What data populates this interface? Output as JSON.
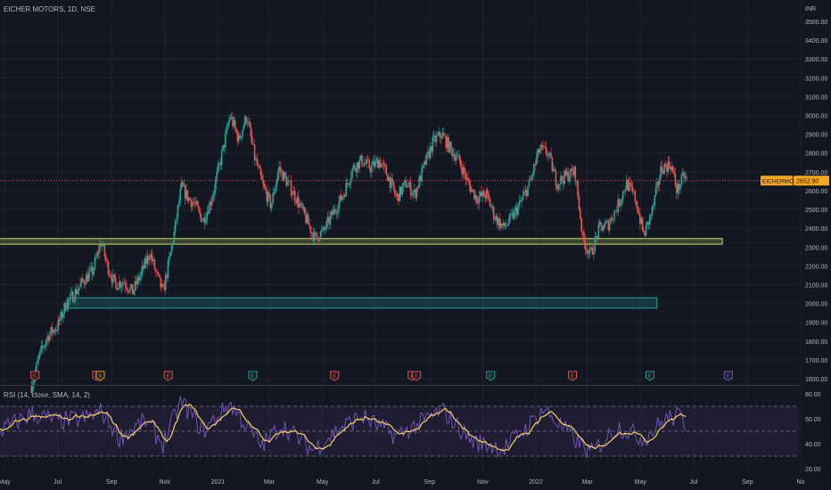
{
  "header": {
    "symbol_title": "EICHER MOTORS, 1D, NSE",
    "currency": "INR"
  },
  "price_badge": {
    "label": "EICHERMOT",
    "value": "2652.90"
  },
  "rsi_panel": {
    "title": "RSI (14, close, SMA, 14, 2)",
    "ticks": [
      "80.00",
      "60.00",
      "40.00",
      "20.00"
    ]
  },
  "colors": {
    "background": "#131722",
    "up": "#26a69a",
    "down": "#ef5350",
    "support_zone": "#c8e06a",
    "demand_zone": "#26a69a",
    "rsi_line": "#7e57c2",
    "rsi_ma": "#f5d061",
    "badge": "#f5a623"
  },
  "chart_data": {
    "type": "candlestick",
    "title": "EICHER MOTORS, 1D, NSE",
    "xlabel": "",
    "ylabel": "INR",
    "ylim": [
      1500,
      3500
    ],
    "y_ticks": [
      "3500.00",
      "3400.00",
      "3300.00",
      "3200.00",
      "3100.00",
      "3000.00",
      "2900.00",
      "2800.00",
      "2700.00",
      "2600.00",
      "2500.00",
      "2400.00",
      "2300.00",
      "2200.00",
      "2100.00",
      "2000.00",
      "1900.00",
      "1800.00",
      "1700.00",
      "1600.00"
    ],
    "x_ticks": [
      {
        "label": "May",
        "date": "2020-05-01"
      },
      {
        "label": "Jul",
        "date": "2020-07-01"
      },
      {
        "label": "Sep",
        "date": "2020-09-01"
      },
      {
        "label": "Nov",
        "date": "2020-11-01"
      },
      {
        "label": "2021",
        "date": "2021-01-01"
      },
      {
        "label": "Mar",
        "date": "2021-03-01"
      },
      {
        "label": "May",
        "date": "2021-05-01"
      },
      {
        "label": "Jul",
        "date": "2021-07-01"
      },
      {
        "label": "Sep",
        "date": "2021-09-01"
      },
      {
        "label": "Nov",
        "date": "2021-11-01"
      },
      {
        "label": "2022",
        "date": "2022-01-01"
      },
      {
        "label": "Mar",
        "date": "2022-03-01"
      },
      {
        "label": "May",
        "date": "2022-05-01"
      },
      {
        "label": "Jul",
        "date": "2022-07-01"
      },
      {
        "label": "Sep",
        "date": "2022-09-01"
      },
      {
        "label": "No",
        "date": "2022-11-01"
      }
    ],
    "close_path": [
      [
        "2020-06-01",
        1560
      ],
      [
        "2020-06-10",
        1720
      ],
      [
        "2020-06-20",
        1830
      ],
      [
        "2020-07-01",
        1880
      ],
      [
        "2020-07-10",
        1990
      ],
      [
        "2020-07-20",
        2050
      ],
      [
        "2020-08-01",
        2130
      ],
      [
        "2020-08-10",
        2170
      ],
      [
        "2020-08-20",
        2330
      ],
      [
        "2020-08-27",
        2200
      ],
      [
        "2020-09-05",
        2100
      ],
      [
        "2020-09-15",
        2120
      ],
      [
        "2020-09-25",
        2060
      ],
      [
        "2020-10-05",
        2160
      ],
      [
        "2020-10-15",
        2270
      ],
      [
        "2020-10-22",
        2160
      ],
      [
        "2020-10-30",
        2060
      ],
      [
        "2020-11-05",
        2200
      ],
      [
        "2020-11-12",
        2380
      ],
      [
        "2020-11-20",
        2620
      ],
      [
        "2020-11-28",
        2560
      ],
      [
        "2020-12-05",
        2530
      ],
      [
        "2020-12-15",
        2440
      ],
      [
        "2020-12-25",
        2560
      ],
      [
        "2021-01-05",
        2780
      ],
      [
        "2021-01-15",
        3000
      ],
      [
        "2021-01-25",
        2870
      ],
      [
        "2021-02-03",
        3000
      ],
      [
        "2021-02-12",
        2780
      ],
      [
        "2021-02-22",
        2620
      ],
      [
        "2021-03-03",
        2520
      ],
      [
        "2021-03-12",
        2720
      ],
      [
        "2021-03-22",
        2640
      ],
      [
        "2021-04-01",
        2560
      ],
      [
        "2021-04-12",
        2450
      ],
      [
        "2021-04-22",
        2350
      ],
      [
        "2021-05-02",
        2380
      ],
      [
        "2021-05-12",
        2470
      ],
      [
        "2021-05-25",
        2580
      ],
      [
        "2021-06-05",
        2720
      ],
      [
        "2021-06-15",
        2760
      ],
      [
        "2021-06-25",
        2720
      ],
      [
        "2021-07-05",
        2760
      ],
      [
        "2021-07-15",
        2680
      ],
      [
        "2021-07-25",
        2560
      ],
      [
        "2021-08-05",
        2640
      ],
      [
        "2021-08-15",
        2580
      ],
      [
        "2021-08-25",
        2720
      ],
      [
        "2021-09-05",
        2860
      ],
      [
        "2021-09-15",
        2900
      ],
      [
        "2021-09-25",
        2820
      ],
      [
        "2021-10-05",
        2760
      ],
      [
        "2021-10-15",
        2640
      ],
      [
        "2021-10-25",
        2560
      ],
      [
        "2021-11-05",
        2580
      ],
      [
        "2021-11-15",
        2460
      ],
      [
        "2021-11-25",
        2400
      ],
      [
        "2021-12-05",
        2460
      ],
      [
        "2021-12-15",
        2540
      ],
      [
        "2021-12-25",
        2640
      ],
      [
        "2022-01-05",
        2820
      ],
      [
        "2022-01-15",
        2800
      ],
      [
        "2022-01-25",
        2640
      ],
      [
        "2022-02-05",
        2680
      ],
      [
        "2022-02-15",
        2700
      ],
      [
        "2022-02-24",
        2340
      ],
      [
        "2022-03-05",
        2260
      ],
      [
        "2022-03-15",
        2400
      ],
      [
        "2022-03-25",
        2420
      ],
      [
        "2022-04-05",
        2520
      ],
      [
        "2022-04-15",
        2640
      ],
      [
        "2022-04-25",
        2560
      ],
      [
        "2022-05-05",
        2360
      ],
      [
        "2022-05-15",
        2500
      ],
      [
        "2022-05-25",
        2720
      ],
      [
        "2022-06-05",
        2740
      ],
      [
        "2022-06-12",
        2600
      ],
      [
        "2022-06-20",
        2680
      ],
      [
        "2022-06-23",
        2650
      ]
    ],
    "zones": [
      {
        "name": "support",
        "from_date": "2020-04-01",
        "to_date": "2022-08-03",
        "low": 2315,
        "high": 2345
      },
      {
        "name": "demand",
        "from_date": "2020-07-12",
        "to_date": "2022-05-20",
        "low": 1975,
        "high": 2030
      }
    ],
    "current_price": 2652.9,
    "earnings_markers": [
      {
        "date": "2020-06-05",
        "label": "E",
        "color": "#ef5350"
      },
      {
        "date": "2020-08-15",
        "label": "E",
        "color": "#ef5350"
      },
      {
        "date": "2020-08-19",
        "label": "S",
        "color": "#f5a623"
      },
      {
        "date": "2020-11-05",
        "label": "E",
        "color": "#ef5350"
      },
      {
        "date": "2021-02-10",
        "label": "E",
        "color": "#26a69a"
      },
      {
        "date": "2021-05-15",
        "label": "E",
        "color": "#ef5350"
      },
      {
        "date": "2021-08-12",
        "label": "E",
        "color": "#ef5350"
      },
      {
        "date": "2021-08-17",
        "label": "E",
        "color": "#ef5350"
      },
      {
        "date": "2021-11-10",
        "label": "E",
        "color": "#26a69a"
      },
      {
        "date": "2022-02-12",
        "label": "E",
        "color": "#ef5350"
      },
      {
        "date": "2022-05-12",
        "label": "E",
        "color": "#26a69a"
      },
      {
        "date": "2022-08-10",
        "label": "E",
        "color": "#7e57c2"
      }
    ],
    "rsi": {
      "ylim": [
        20,
        85
      ],
      "upper_band": 70,
      "mid_band": 50,
      "lower_band": 30,
      "path": [
        [
          "2020-04-05",
          48
        ],
        [
          "2020-05-01",
          52
        ],
        [
          "2020-06-01",
          64
        ],
        [
          "2020-07-01",
          58
        ],
        [
          "2020-08-01",
          60
        ],
        [
          "2020-08-20",
          66
        ],
        [
          "2020-09-10",
          45
        ],
        [
          "2020-10-10",
          58
        ],
        [
          "2020-10-30",
          40
        ],
        [
          "2020-11-20",
          74
        ],
        [
          "2020-12-15",
          50
        ],
        [
          "2021-01-15",
          72
        ],
        [
          "2021-02-20",
          38
        ],
        [
          "2021-03-15",
          55
        ],
        [
          "2021-04-20",
          35
        ],
        [
          "2021-05-20",
          52
        ],
        [
          "2021-06-15",
          62
        ],
        [
          "2021-07-25",
          46
        ],
        [
          "2021-08-25",
          58
        ],
        [
          "2021-09-15",
          67
        ],
        [
          "2021-10-20",
          42
        ],
        [
          "2021-11-25",
          36
        ],
        [
          "2021-12-25",
          55
        ],
        [
          "2022-01-10",
          68
        ],
        [
          "2022-02-05",
          50
        ],
        [
          "2022-03-05",
          32
        ],
        [
          "2022-04-05",
          54
        ],
        [
          "2022-05-05",
          44
        ],
        [
          "2022-05-30",
          60
        ],
        [
          "2022-06-15",
          62
        ],
        [
          "2022-06-23",
          55
        ]
      ]
    }
  }
}
